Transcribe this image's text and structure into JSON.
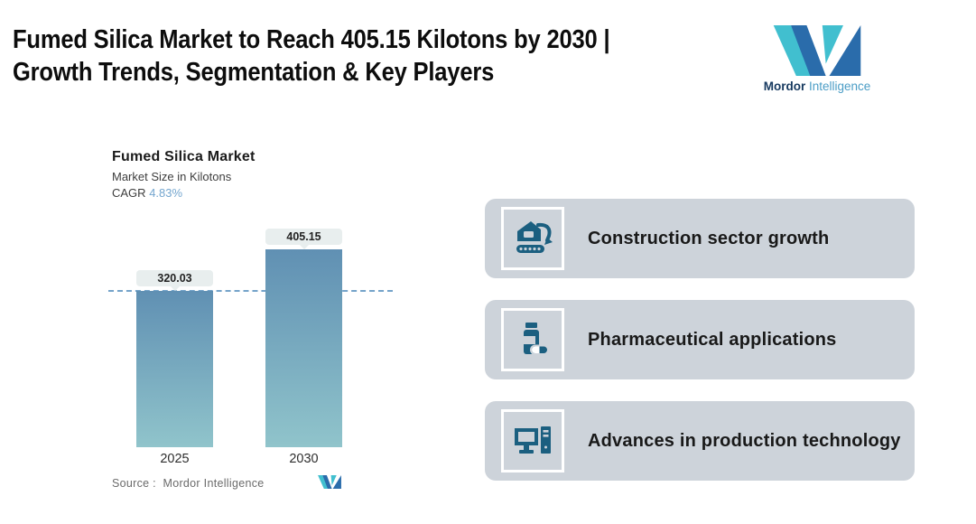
{
  "header": {
    "title_lines": [
      "Fumed Silica Market to Reach 405.15 Kilotons by 2030 |",
      "Growth Trends, Segmentation & Key Players"
    ]
  },
  "brand": {
    "name_bold": "Mordor",
    "name_regular": "Intelligence",
    "colors": {
      "teal": "#41bfcf",
      "blue": "#2a6cab",
      "text_dark": "#16395f",
      "text_light": "#4b9dc6"
    }
  },
  "chart": {
    "title": "Fumed Silica Market",
    "subtitle": "Market Size in Kilotons",
    "cagr_label": "CAGR",
    "cagr_value": "4.83%",
    "source_label": "Source :",
    "source_value": "Mordor Intelligence"
  },
  "chart_data": {
    "type": "bar",
    "title": "Fumed Silica Market",
    "ylabel": "Market Size in Kilotons",
    "categories": [
      "2025",
      "2030"
    ],
    "values": [
      320.03,
      405.15
    ],
    "value_labels": [
      "320.03",
      "405.15"
    ],
    "cagr_pct": 4.83,
    "reference_line": 320.03,
    "ylim": [
      0,
      450
    ],
    "grid": false,
    "legend": false,
    "bar_gradient_top": "#6090b3",
    "bar_gradient_bottom": "#90c4cb",
    "source": "Mordor Intelligence"
  },
  "highlights": {
    "card_bg": "#cdd3da",
    "icon_color": "#1b5f80",
    "cards": [
      {
        "icon": "excavator-icon",
        "label": "Construction sector growth"
      },
      {
        "icon": "pill-bottle-icon",
        "label": "Pharmaceutical applications"
      },
      {
        "icon": "desktop-computer-icon",
        "label": "Advances in production technology"
      }
    ]
  }
}
